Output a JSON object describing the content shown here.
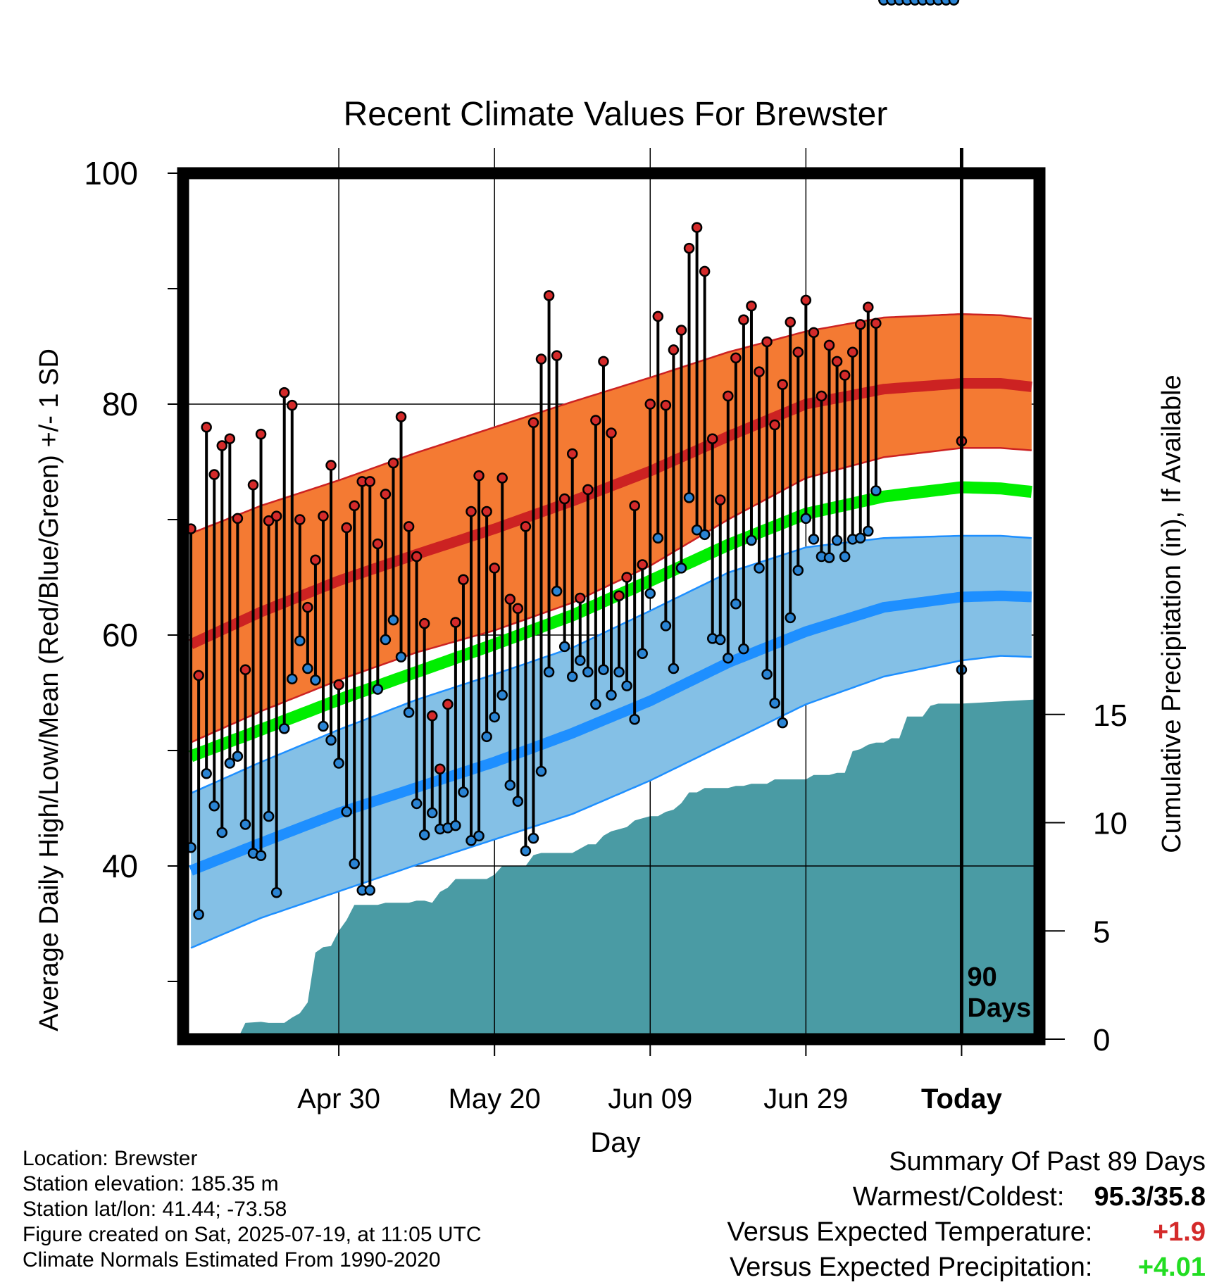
{
  "chart_data": {
    "type": "line",
    "title": "Recent Climate Values For Brewster",
    "xlabel": "Day",
    "ylabel_left": "Average Daily High/Low/Mean (Red/Blue/Green) +/- 1 SD",
    "ylabel_right": "Cumulative Precipitation (in), If Available",
    "y_left_range": [
      25,
      100
    ],
    "y_left_ticks": [
      "40",
      "60",
      "80",
      "100"
    ],
    "y_right_range": [
      0,
      40
    ],
    "y_right_ticks": [
      "0",
      "5",
      "10",
      "15"
    ],
    "x_range": [
      -100,
      10
    ],
    "x_ticks": [
      {
        "day": -80,
        "label": "Apr 30"
      },
      {
        "day": -60,
        "label": "May 20"
      },
      {
        "day": -40,
        "label": "Jun 09"
      },
      {
        "day": -20,
        "label": "Jun 29"
      },
      {
        "day": 0,
        "label": "Today"
      }
    ],
    "grid": true,
    "today_annotation": [
      "90",
      "Days"
    ],
    "normals": {
      "day": [
        -99,
        -90,
        -80,
        -70,
        -60,
        -50,
        -40,
        -30,
        -20,
        -10,
        0,
        5,
        9
      ],
      "high_mean": [
        59.2,
        62.0,
        64.7,
        67.0,
        69.2,
        71.6,
        74.2,
        77.2,
        80.0,
        81.3,
        81.8,
        81.8,
        81.5
      ],
      "high_upper": [
        68.8,
        71.2,
        73.4,
        75.8,
        78.0,
        80.2,
        82.3,
        84.5,
        86.3,
        87.5,
        87.8,
        87.7,
        87.4
      ],
      "high_lower": [
        50.7,
        53.4,
        56.1,
        58.5,
        60.4,
        62.8,
        66.0,
        70.0,
        73.6,
        75.4,
        76.2,
        76.2,
        76.0
      ],
      "mean": [
        49.5,
        51.8,
        54.4,
        56.8,
        59.2,
        61.7,
        64.7,
        67.8,
        70.5,
        72.0,
        72.8,
        72.7,
        72.4
      ],
      "low_mean": [
        39.6,
        42.0,
        44.6,
        46.8,
        49.0,
        51.5,
        54.3,
        57.6,
        60.3,
        62.4,
        63.3,
        63.4,
        63.3
      ],
      "low_upper": [
        46.3,
        49.0,
        51.8,
        54.4,
        56.6,
        58.9,
        62.1,
        65.4,
        67.6,
        68.4,
        68.6,
        68.6,
        68.4
      ],
      "low_lower": [
        32.9,
        35.5,
        37.8,
        40.1,
        42.3,
        44.5,
        47.4,
        50.7,
        54.0,
        56.4,
        57.8,
        58.2,
        58.1
      ]
    },
    "daily": {
      "day": [
        -99,
        -98,
        -97,
        -96,
        -95,
        -94,
        -93,
        -92,
        -91,
        -90,
        -89,
        -88,
        -87,
        -86,
        -85,
        -84,
        -83,
        -82,
        -81,
        -80,
        -79,
        -78,
        -77,
        -76,
        -75,
        -74,
        -73,
        -72,
        -71,
        -70,
        -69,
        -68,
        -67,
        -66,
        -65,
        -64,
        -63,
        -62,
        -61,
        -60,
        -59,
        -58,
        -57,
        -56,
        -55,
        -54,
        -53,
        -52,
        -51,
        -50,
        -49,
        -48,
        -47,
        -46,
        -45,
        -44,
        -43,
        -42,
        -41,
        -40,
        -39,
        -38,
        -37,
        -36,
        -35,
        -34,
        -33,
        -32,
        -31,
        -30,
        -29,
        -28,
        -27,
        -26,
        -25,
        -24,
        -23,
        -22,
        -21,
        -20,
        -19,
        -18,
        -17,
        -16,
        -15,
        -14,
        -13,
        -12,
        -11,
        -10,
        -9,
        -8,
        -7,
        -6,
        -5,
        -4,
        -3,
        -2,
        -1
      ],
      "high": [
        69.2,
        56.5,
        78.0,
        73.9,
        76.4,
        77.0,
        70.1,
        57.0,
        73.0,
        77.4,
        69.9,
        70.3,
        81.0,
        79.9,
        70.0,
        62.4,
        66.5,
        70.3,
        74.7,
        55.7,
        69.3,
        71.2,
        73.3,
        73.3,
        67.9,
        72.2,
        74.9,
        78.9,
        69.4,
        66.8,
        61.0,
        53.0,
        48.4,
        54.0,
        61.1,
        64.8,
        70.7,
        73.8,
        70.7,
        65.8,
        73.6,
        63.1,
        62.3,
        69.4,
        78.4,
        83.9,
        89.4,
        84.2,
        71.8,
        75.7,
        63.2,
        72.6,
        78.6,
        83.7,
        77.5,
        63.4,
        65.0,
        71.2,
        66.1,
        80.0,
        87.6,
        79.9,
        84.7,
        86.4,
        93.5,
        95.3,
        91.5,
        77.0,
        71.7,
        80.7,
        84.0,
        87.3,
        88.5,
        82.8,
        85.4,
        78.2,
        81.7,
        87.1,
        84.5,
        89.0,
        86.2,
        80.7,
        85.1,
        83.7,
        82.5,
        84.5,
        86.9,
        88.4,
        87.0
      ],
      "low": [
        41.6,
        35.8,
        48.0,
        45.2,
        42.9,
        48.9,
        49.5,
        43.6,
        41.1,
        40.9,
        44.3,
        37.7,
        51.9,
        56.2,
        59.5,
        57.1,
        56.1,
        52.1,
        50.9,
        48.9,
        44.7,
        40.2,
        37.9,
        37.9,
        55.3,
        59.6,
        61.3,
        58.1,
        53.3,
        45.4,
        42.7,
        44.6,
        43.2,
        43.3,
        43.5,
        46.4,
        42.2,
        42.6,
        51.2,
        52.9,
        54.8,
        47.0,
        45.6,
        41.3,
        42.4,
        48.2,
        56.8,
        63.8,
        59.0,
        56.4,
        57.8,
        56.8,
        54.0,
        57.0,
        54.8,
        56.8,
        55.6,
        52.7,
        58.4,
        63.6,
        68.4,
        60.8,
        57.1,
        65.8,
        71.9,
        69.1,
        68.7,
        59.7,
        59.6,
        58.0,
        62.7,
        58.8,
        68.2,
        65.8,
        56.6,
        54.1,
        52.4,
        61.5,
        65.6,
        70.1,
        68.3,
        66.8,
        66.7,
        68.2,
        66.8,
        68.3,
        68.4,
        69.0,
        72.5
      ],
      "today": {
        "day": 0,
        "high": 76.8,
        "low": 57.0
      }
    },
    "precip": {
      "day": [
        -100,
        -96,
        -95,
        -93,
        -92,
        -90,
        -89,
        -87,
        -86,
        -85,
        -84,
        -83,
        -82,
        -81,
        -80,
        -79,
        -78,
        -77,
        -76,
        -75,
        -74,
        -73,
        -72,
        -71,
        -70,
        -69,
        -68,
        -67,
        -66,
        -65,
        -64,
        -63,
        -62,
        -61,
        -60,
        -59,
        -58,
        -57,
        -56,
        -55,
        -54,
        -53,
        -52,
        -51,
        -50,
        -49,
        -48,
        -47,
        -46,
        -45,
        -44,
        -43,
        -42,
        -41,
        -40,
        -39,
        -38,
        -37,
        -36,
        -35,
        -34,
        -33,
        -32,
        -31,
        -30,
        -29,
        -28,
        -27,
        -26,
        -25,
        -24,
        -23,
        -22,
        -21,
        -20,
        -19,
        -18,
        -17,
        -16,
        -15,
        -14,
        -13,
        -12,
        -11,
        -10,
        -9,
        -8,
        -7,
        -6,
        -5,
        -4,
        -3,
        -2,
        -1,
        0,
        10
      ],
      "cumulative": [
        0.0,
        0.0,
        0.0,
        0.0,
        0.75,
        0.8,
        0.75,
        0.75,
        1.0,
        1.2,
        1.7,
        4.0,
        4.25,
        4.3,
        5.0,
        5.5,
        6.2,
        6.2,
        6.2,
        6.2,
        6.3,
        6.3,
        6.3,
        6.3,
        6.4,
        6.4,
        6.3,
        6.8,
        7.0,
        7.4,
        7.4,
        7.4,
        7.4,
        7.4,
        7.6,
        8.0,
        8.0,
        8.0,
        8.0,
        8.5,
        8.6,
        8.6,
        8.6,
        8.6,
        8.6,
        8.8,
        9.0,
        9.0,
        9.4,
        9.6,
        9.7,
        9.8,
        10.1,
        10.2,
        10.3,
        10.3,
        10.5,
        10.6,
        10.9,
        11.4,
        11.4,
        11.6,
        11.6,
        11.6,
        11.6,
        11.7,
        11.7,
        11.8,
        11.8,
        11.8,
        12.0,
        12.0,
        12.0,
        12.0,
        12.0,
        12.2,
        12.2,
        12.2,
        12.3,
        12.3,
        13.3,
        13.4,
        13.6,
        13.7,
        13.7,
        13.9,
        13.9,
        14.9,
        14.9,
        14.9,
        15.4,
        15.5,
        15.5,
        15.5,
        15.5,
        15.7
      ]
    },
    "colors": {
      "high_band": "#f47a33",
      "high_line": "#cc2222",
      "mean_line": "#00ee00",
      "low_band": "#84c0e6",
      "low_line": "#1e8fff",
      "precip": "#4a9ba4",
      "high_marker": "#d42a2a",
      "low_marker": "#2a84d4"
    }
  },
  "footer": {
    "location": "Location: Brewster",
    "elevation": "Station elevation: 185.35 m",
    "latlon": "Station lat/lon: 41.44; -73.58",
    "created": "Figure created on Sat, 2025-07-19, at 11:05 UTC",
    "normals": "Climate Normals Estimated From 1990-2020"
  },
  "summary": {
    "heading": "Summary Of Past 89 Days",
    "warm_cold_label": "Warmest/Coldest:",
    "warm_cold_value": "95.3/35.8",
    "temp_label": "Versus Expected Temperature:",
    "temp_value": "+1.9",
    "temp_color": "#d42a2a",
    "precip_label": "Versus Expected Precipitation:",
    "precip_value": "+4.01",
    "precip_color": "#22dd22"
  }
}
